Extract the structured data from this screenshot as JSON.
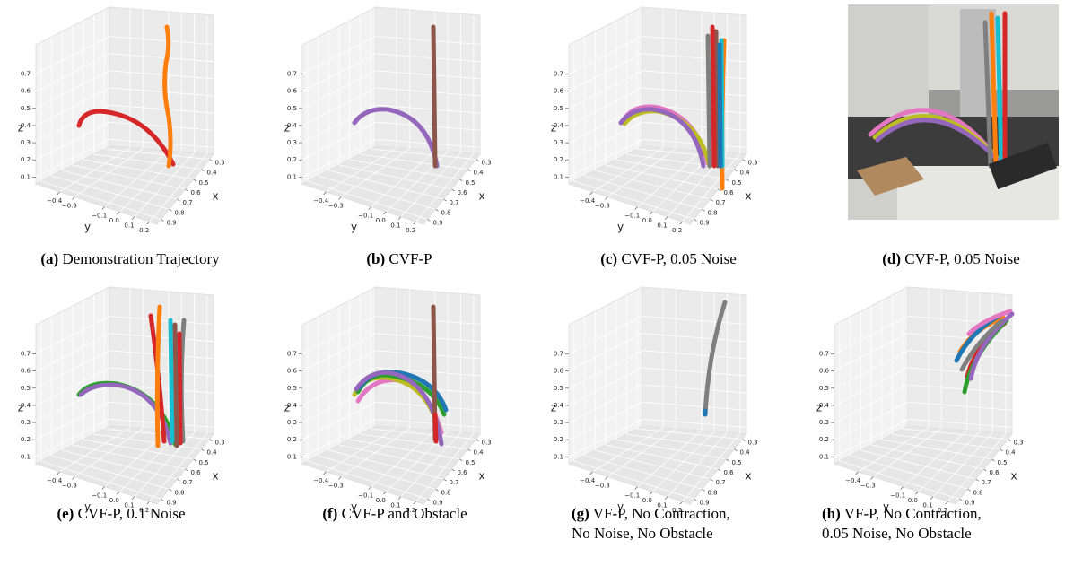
{
  "axes": {
    "xlabel": "x",
    "ylabel": "y",
    "zlabel": "z",
    "xlim": [
      0.95,
      0.25
    ],
    "xticks": [
      0.3,
      0.4,
      0.5,
      0.6,
      0.7,
      0.8,
      0.9
    ],
    "ylim": [
      -0.56,
      0.25
    ],
    "yticks": [
      {
        "value": -0.4,
        "label": "−0.4"
      },
      {
        "value": -0.3,
        "label": "−0.3"
      },
      {
        "value": -0.1,
        "label": "−0.1"
      },
      {
        "value": 0.0,
        "label": "0.0"
      },
      0.1,
      0.2
    ],
    "zlim": [
      0.06,
      0.87
    ],
    "zticks": [
      0.1,
      0.2,
      0.3,
      0.4,
      0.5,
      0.6,
      0.7
    ]
  },
  "subfigures": [
    {
      "label": "(a)",
      "caption": [
        "Demonstration Trajectory"
      ]
    },
    {
      "label": "(b)",
      "caption": [
        "CVF-P"
      ]
    },
    {
      "label": "(c)",
      "caption": [
        "CVF-P, 0.05 Noise"
      ]
    },
    {
      "label": "(d)",
      "caption": [
        "CVF-P, 0.05 Noise"
      ]
    },
    {
      "label": "(e)",
      "caption": [
        "CVF-P, 0.1 Noise"
      ]
    },
    {
      "label": "(f)",
      "caption": [
        "CVF-P and Obstacle"
      ]
    },
    {
      "label": "(g)",
      "caption": [
        "VF-P, No Contraction,",
        "No Noise, No Obstacle"
      ]
    },
    {
      "label": "(h)",
      "caption": [
        "VF-P, No Contraction,",
        "0.05 Noise, No Obstacle"
      ]
    }
  ]
}
